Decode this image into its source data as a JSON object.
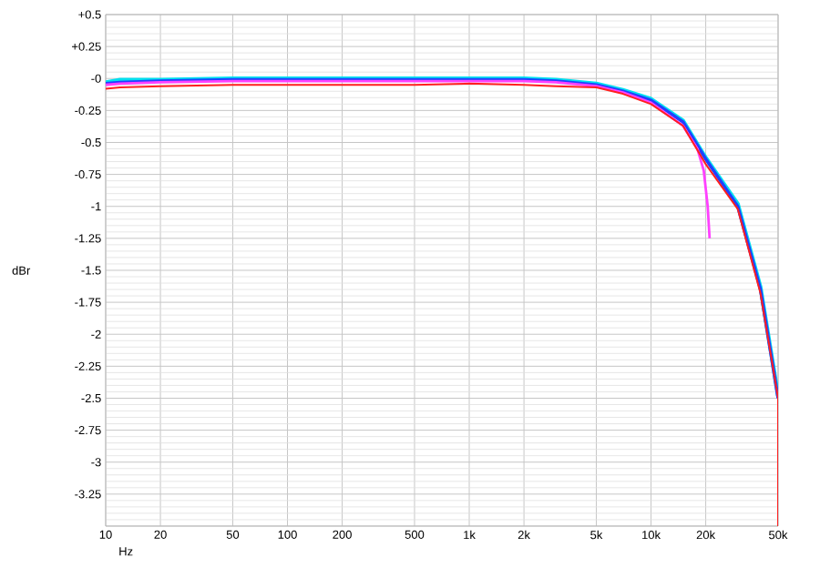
{
  "chart_data": {
    "type": "line",
    "xlabel": "Hz",
    "ylabel": "dBr",
    "log": "x",
    "grid": true,
    "marker": "none",
    "line_style": "solid",
    "xlim": [
      10,
      50000
    ],
    "ylim": [
      -3.5,
      0.5
    ],
    "xticks": [
      10,
      20,
      50,
      100,
      200,
      500,
      {
        "value": 1000,
        "label": "1k"
      },
      {
        "value": 2000,
        "label": "2k"
      },
      {
        "value": 5000,
        "label": "5k"
      },
      {
        "value": 10000,
        "label": "10k"
      },
      {
        "value": 20000,
        "label": "20k"
      },
      {
        "value": 50000,
        "label": "50k"
      }
    ],
    "yticks": [
      {
        "value": 0.5,
        "label": "+0.5"
      },
      {
        "value": 0.25,
        "label": "+0.25"
      },
      {
        "value": 0,
        "label": "-0"
      },
      -0.25,
      -0.5,
      -0.75,
      -1,
      -1.25,
      -1.5,
      -1.75,
      -2,
      -2.25,
      -2.5,
      -2.75,
      -3,
      -3.25,
      {
        "value": -3.5,
        "label": null
      }
    ],
    "series": [
      {
        "color": "#00e0f0",
        "x": [
          10,
          12,
          20,
          50,
          100,
          500,
          1000,
          2000,
          3000,
          5000,
          7000,
          10000,
          15000,
          20000,
          30000,
          40000,
          50000
        ],
        "values": [
          -0.03,
          -0.01,
          -0.01,
          0.0,
          0.0,
          0.0,
          0.0,
          0.0,
          -0.01,
          -0.04,
          -0.09,
          -0.16,
          -0.33,
          -0.62,
          -0.98,
          -1.63,
          -2.48
        ]
      },
      {
        "color": "#2040ff",
        "x": [
          10,
          12,
          20,
          50,
          100,
          500,
          1000,
          2000,
          3000,
          5000,
          7000,
          10000,
          15000,
          20000,
          30000,
          40000,
          50000
        ],
        "values": [
          -0.04,
          -0.03,
          -0.02,
          -0.01,
          -0.01,
          -0.01,
          -0.01,
          -0.01,
          -0.02,
          -0.05,
          -0.1,
          -0.17,
          -0.34,
          -0.63,
          -1.0,
          -1.65,
          -2.5
        ]
      },
      {
        "color": "#ff40ff",
        "x": [
          10,
          12,
          20,
          50,
          100,
          500,
          1000,
          2000,
          3000,
          5000,
          7000,
          10000,
          15000,
          18000,
          19500,
          20500,
          21000
        ],
        "values": [
          -0.05,
          -0.04,
          -0.03,
          -0.02,
          -0.02,
          -0.02,
          -0.02,
          -0.02,
          -0.03,
          -0.06,
          -0.11,
          -0.19,
          -0.37,
          -0.55,
          -0.72,
          -1.0,
          -1.25
        ]
      },
      {
        "color": "#ff2020",
        "x": [
          10,
          12,
          20,
          50,
          100,
          500,
          1000,
          2000,
          3000,
          5000,
          7000,
          10000,
          15000,
          20000,
          30000,
          40000,
          50000,
          50000
        ],
        "values": [
          -0.08,
          -0.07,
          -0.06,
          -0.05,
          -0.05,
          -0.05,
          -0.04,
          -0.05,
          -0.06,
          -0.07,
          -0.12,
          -0.2,
          -0.37,
          -0.67,
          -1.02,
          -1.68,
          -2.5,
          -3.5
        ]
      }
    ]
  }
}
